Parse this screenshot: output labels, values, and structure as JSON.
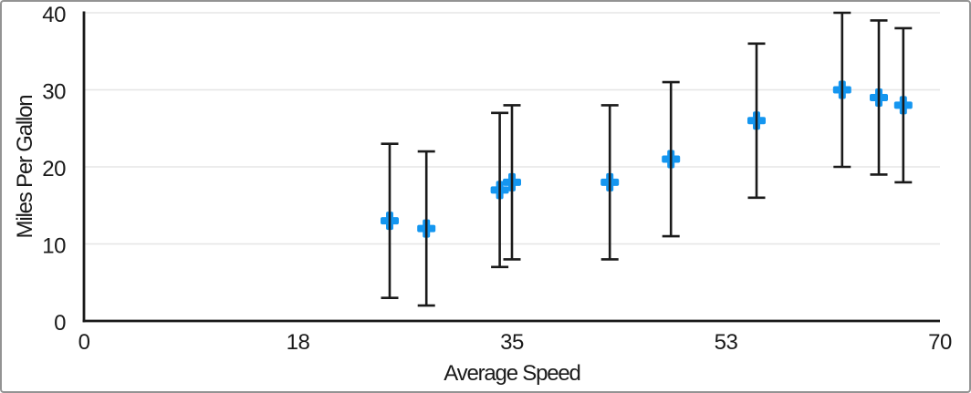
{
  "chart_data": {
    "type": "scatter",
    "title": "",
    "xlabel": "Average Speed",
    "ylabel": "Miles Per Gallon",
    "xlim": [
      0,
      70
    ],
    "ylim": [
      0,
      40
    ],
    "grid": "horizontal-only",
    "legend": "none",
    "x_ticks": [
      {
        "value": 0,
        "label": "0"
      },
      {
        "value": 17.5,
        "label": "18"
      },
      {
        "value": 35,
        "label": "35"
      },
      {
        "value": 52.5,
        "label": "53"
      },
      {
        "value": 70,
        "label": "70"
      }
    ],
    "y_ticks": [
      {
        "value": 40,
        "label": "40"
      },
      {
        "value": 30,
        "label": "30"
      },
      {
        "value": 20,
        "label": "20"
      },
      {
        "value": 10,
        "label": "10"
      },
      {
        "value": 0,
        "label": "0"
      }
    ],
    "series": [
      {
        "name": "Miles Per Gallon",
        "marker": "plus",
        "error_bars": "y-symmetric",
        "points": [
          {
            "x": 25,
            "y": 13,
            "y_error": 10
          },
          {
            "x": 28,
            "y": 12,
            "y_error": 10
          },
          {
            "x": 34,
            "y": 17,
            "y_error": 10
          },
          {
            "x": 35,
            "y": 18,
            "y_error": 10
          },
          {
            "x": 43,
            "y": 18,
            "y_error": 10
          },
          {
            "x": 48,
            "y": 21,
            "y_error": 10
          },
          {
            "x": 55,
            "y": 26,
            "y_error": 10
          },
          {
            "x": 62,
            "y": 30,
            "y_error": 10
          },
          {
            "x": 65,
            "y": 29,
            "y_error": 10
          },
          {
            "x": 67,
            "y": 28,
            "y_error": 10
          }
        ]
      }
    ],
    "colors": {
      "marker": "#1496F0",
      "error_bar": "#1a1a1a",
      "axis": "#1a1a1a",
      "gridline": "#e5e5e5",
      "text": "#1a1a1a",
      "background": "#ffffff",
      "frame_border": "#939393"
    }
  }
}
